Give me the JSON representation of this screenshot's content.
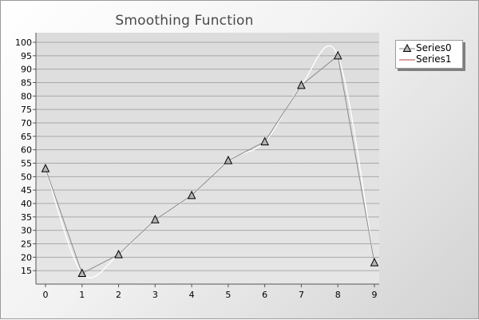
{
  "chart_data": {
    "type": "line",
    "title": "Smoothing Function",
    "xlabel": "",
    "ylabel": "",
    "x": [
      0,
      1,
      2,
      3,
      4,
      5,
      6,
      7,
      8,
      9
    ],
    "xlim": [
      0,
      9
    ],
    "ylim": [
      10,
      100
    ],
    "yticks": [
      15,
      20,
      25,
      30,
      35,
      40,
      45,
      50,
      55,
      60,
      65,
      70,
      75,
      80,
      85,
      90,
      95,
      100
    ],
    "grid": true,
    "legend_position": "top-right",
    "series": [
      {
        "name": "Series0",
        "values": [
          53,
          14,
          21,
          34,
          43,
          56,
          63,
          84,
          95,
          18
        ],
        "color": "#8a8a8a",
        "marker": "triangle",
        "smooth": false
      },
      {
        "name": "Series1",
        "values": [
          53,
          14,
          21,
          34,
          43,
          56,
          63,
          84,
          95,
          18
        ],
        "color": "#ffffff",
        "legend_color": "#b04040",
        "marker": "none",
        "smooth": true
      }
    ]
  },
  "colors": {
    "plot_background": "#e1e1e1",
    "grid": "#a8a8a8",
    "axis": "#555555",
    "title": "#4a4a4a"
  }
}
